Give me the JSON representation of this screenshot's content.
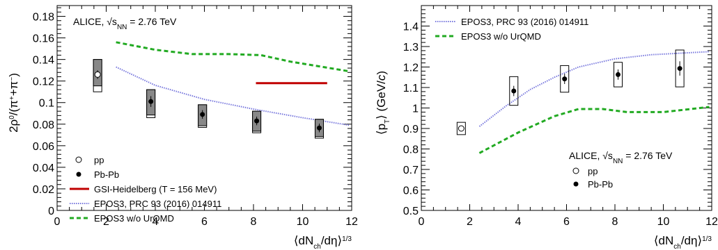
{
  "chart_data": [
    {
      "type": "scatter",
      "title": "",
      "annotation": {
        "experiment": "ALICE,",
        "energy_symbol": "√s",
        "energy_sub": "NN",
        "energy_value": "= 2.76 TeV"
      },
      "xlabel": {
        "prefix": "⟨dN",
        "sub": "ch",
        "middle": "/dη⟩",
        "sup": "1/3"
      },
      "ylabel": {
        "prefix": "2ρ",
        "sup1": "0",
        "middle": "/(π",
        "sup2": "+",
        "plus": "+π",
        "sup3": "−",
        "suffix": ")"
      },
      "xlim": [
        0,
        12
      ],
      "ylim": [
        0,
        0.19
      ],
      "xticks": [
        0,
        2,
        4,
        6,
        8,
        10,
        12
      ],
      "yticks": [
        0,
        0.02,
        0.04,
        0.06,
        0.08,
        0.1,
        0.12,
        0.14,
        0.16,
        0.18
      ],
      "ytick_labels": [
        "0",
        "0.02",
        "0.04",
        "0.06",
        "0.08",
        "0.1",
        "0.12",
        "0.14",
        "0.16",
        "0.18"
      ],
      "grid": false,
      "legend_position": "bottom-left",
      "series": [
        {
          "name": "pp",
          "marker": "open-circle",
          "points": [
            {
              "x": 1.65,
              "y": 0.126,
              "stat": 0.004,
              "sys_low": 0.016,
              "sys_high": 0.014,
              "corr_low": 0.0105
            }
          ]
        },
        {
          "name": "Pb-Pb",
          "marker": "filled-circle",
          "points": [
            {
              "x": 3.82,
              "y": 0.101,
              "stat": 0.005,
              "sys_low": 0.015,
              "sys_high": 0.011,
              "corr_low": 0.0125
            },
            {
              "x": 5.92,
              "y": 0.089,
              "stat": 0.004,
              "sys_low": 0.012,
              "sys_high": 0.009,
              "corr_low": 0.0105
            },
            {
              "x": 8.13,
              "y": 0.083,
              "stat": 0.004,
              "sys_low": 0.011,
              "sys_high": 0.009,
              "corr_low": 0.0095
            },
            {
              "x": 10.68,
              "y": 0.0765,
              "stat": 0.004,
              "sys_low": 0.0095,
              "sys_high": 0.008,
              "corr_low": 0.008
            }
          ]
        },
        {
          "name": "GSI-Heidelberg (T = 156 MeV)",
          "type": "line",
          "color": "#c00000",
          "x": [
            8.1,
            11.0
          ],
          "y": [
            0.118,
            0.118
          ]
        },
        {
          "name": "EPOS3, PRC 93 (2016) 014911",
          "type": "line",
          "style": "dotted",
          "color": "#7777dd",
          "x": [
            2.4,
            4,
            6,
            8,
            10,
            11.9
          ],
          "y": [
            0.133,
            0.116,
            0.103,
            0.094,
            0.086,
            0.079
          ]
        },
        {
          "name": "EPOS3 w/o UrQMD",
          "type": "line",
          "style": "dashed",
          "color": "#22aa22",
          "x": [
            2.4,
            4,
            5.5,
            7,
            8.3,
            9.5,
            11.9
          ],
          "y": [
            0.156,
            0.149,
            0.145,
            0.145,
            0.144,
            0.138,
            0.129
          ]
        }
      ]
    },
    {
      "type": "scatter",
      "title": "",
      "annotation": {
        "experiment": "ALICE,",
        "energy_symbol": "√s",
        "energy_sub": "NN",
        "energy_value": "= 2.76 TeV"
      },
      "xlabel": {
        "prefix": "⟨dN",
        "sub": "ch",
        "middle": "/dη⟩",
        "sup": "1/3"
      },
      "ylabel": {
        "prefix": "⟨p",
        "sub": "T",
        "middle": "⟩ (GeV/",
        "italic": "c",
        "suffix": ")"
      },
      "xlim": [
        0,
        12
      ],
      "ylim": [
        0.5,
        1.5
      ],
      "xticks": [
        0,
        2,
        4,
        6,
        8,
        10,
        12
      ],
      "yticks": [
        0.5,
        0.6,
        0.7,
        0.8,
        0.9,
        1.0,
        1.1,
        1.2,
        1.3,
        1.4
      ],
      "ytick_labels": [
        "0.5",
        "0.6",
        "0.7",
        "0.8",
        "0.9",
        "1",
        "1.1",
        "1.2",
        "1.3",
        "1.4"
      ],
      "grid": false,
      "legend_position": "top-left",
      "series": [
        {
          "name": "pp",
          "marker": "open-circle",
          "points": [
            {
              "x": 1.65,
              "y": 0.9,
              "stat": 0.01,
              "sys": 0.03
            }
          ]
        },
        {
          "name": "Pb-Pb",
          "marker": "filled-circle",
          "points": [
            {
              "x": 3.82,
              "y": 1.083,
              "stat": 0.025,
              "sys": 0.07
            },
            {
              "x": 5.92,
              "y": 1.142,
              "stat": 0.025,
              "sys": 0.065
            },
            {
              "x": 8.13,
              "y": 1.163,
              "stat": 0.025,
              "sys": 0.06
            },
            {
              "x": 10.68,
              "y": 1.193,
              "stat": 0.035,
              "sys": 0.09
            }
          ]
        },
        {
          "name": "EPOS3, PRC 93 (2016) 014911",
          "type": "line",
          "style": "dotted",
          "color": "#7777dd",
          "x": [
            2.4,
            3.5,
            4.5,
            5.5,
            6.5,
            8,
            9.5,
            11.9
          ],
          "y": [
            0.91,
            1.01,
            1.09,
            1.15,
            1.2,
            1.24,
            1.26,
            1.275
          ]
        },
        {
          "name": "EPOS3 w/o UrQMD",
          "type": "line",
          "style": "dashed",
          "color": "#22aa22",
          "x": [
            2.4,
            4,
            5.5,
            6.5,
            7.5,
            8.5,
            10,
            11.9
          ],
          "y": [
            0.78,
            0.88,
            0.96,
            0.995,
            0.995,
            0.98,
            0.98,
            1.005
          ]
        }
      ]
    }
  ]
}
